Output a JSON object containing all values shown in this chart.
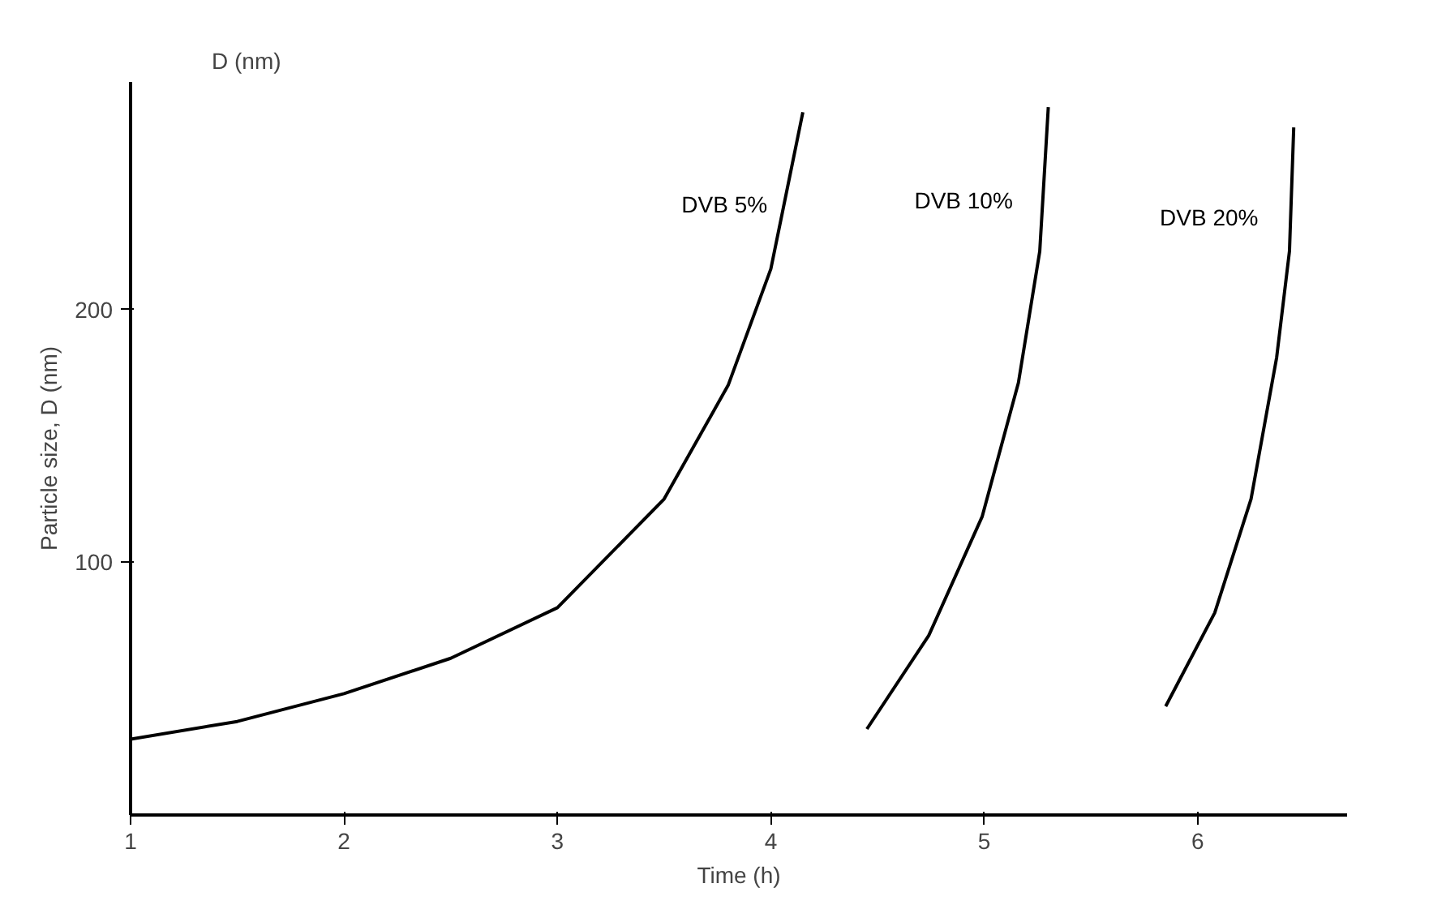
{
  "chart_data": {
    "type": "line",
    "xlabel": "Time (h)",
    "ylabel": "Particle size, D (nm)",
    "annotations": [
      "D (nm)"
    ],
    "xlim": [
      1,
      6.7
    ],
    "ylim": [
      0,
      290
    ],
    "xticks": [
      1,
      2,
      3,
      4,
      5,
      6
    ],
    "yticks": [
      100,
      200
    ],
    "grid": false,
    "marker": "none",
    "line_style": "solid",
    "series": [
      {
        "name": "DVB  5%",
        "color": "#000000",
        "x": [
          1,
          1.5,
          2,
          2.5,
          3,
          3.5,
          3.8,
          4,
          4.15
        ],
        "values": [
          30,
          37,
          48,
          62,
          82,
          125,
          170,
          216,
          278
        ]
      },
      {
        "name": "DVB  10%",
        "color": "#000000",
        "x": [
          4.45,
          4.74,
          4.99,
          5.16,
          5.26,
          5.3
        ],
        "values": [
          34,
          71,
          118,
          171,
          223,
          280
        ]
      },
      {
        "name": "DVB  20%",
        "color": "#000000",
        "x": [
          5.85,
          6.08,
          6.25,
          6.37,
          6.43,
          6.45
        ],
        "values": [
          43,
          80,
          125,
          181,
          223,
          272
        ]
      }
    ]
  }
}
